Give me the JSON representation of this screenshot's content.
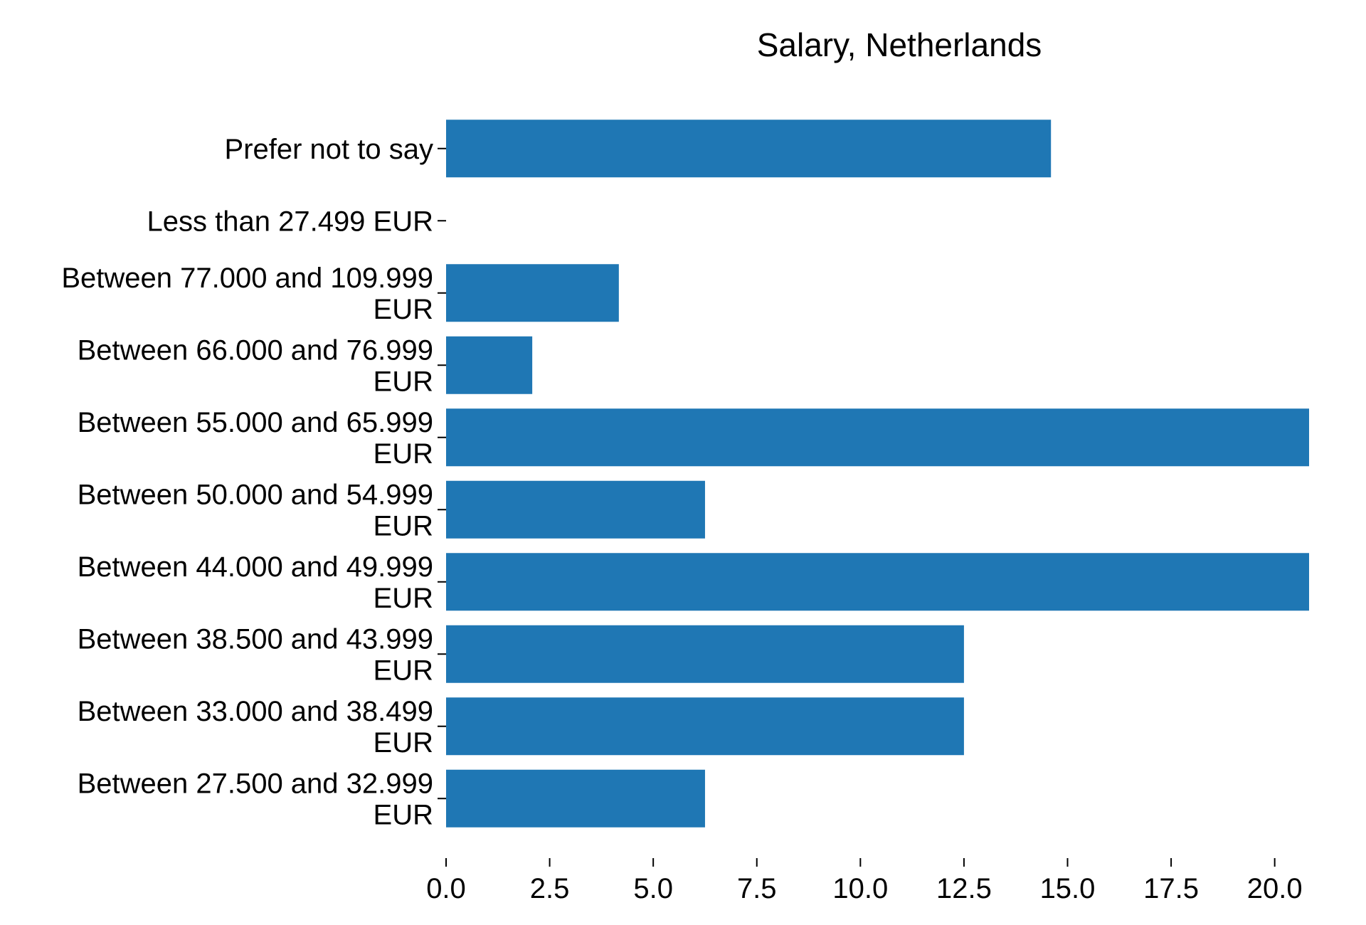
{
  "chart_data": {
    "type": "bar",
    "orientation": "horizontal",
    "title": "Salary, Netherlands",
    "xlabel": "",
    "ylabel": "",
    "categories": [
      "Prefer not to say",
      "Less than 27.499 EUR",
      "Between 77.000 and 109.999 EUR",
      "Between 66.000 and 76.999 EUR",
      "Between 55.000 and 65.999 EUR",
      "Between 50.000 and 54.999 EUR",
      "Between 44.000 and 49.999 EUR",
      "Between 38.500 and 43.999 EUR",
      "Between 33.000 and 38.499 EUR",
      "Between 27.500 and 32.999 EUR"
    ],
    "category_lines": [
      [
        "Prefer not to say"
      ],
      [
        "Less than 27.499 EUR"
      ],
      [
        "Between 77.000 and 109.999",
        "EUR"
      ],
      [
        "Between 66.000 and 76.999",
        "EUR"
      ],
      [
        "Between 55.000 and 65.999",
        "EUR"
      ],
      [
        "Between 50.000 and 54.999",
        "EUR"
      ],
      [
        "Between 44.000 and 49.999",
        "EUR"
      ],
      [
        "Between 38.500 and 43.999",
        "EUR"
      ],
      [
        "Between 33.000 and 38.499",
        "EUR"
      ],
      [
        "Between 27.500 and 32.999",
        "EUR"
      ]
    ],
    "values": [
      14.6,
      0,
      4.17,
      2.08,
      20.83,
      6.25,
      20.83,
      12.5,
      12.5,
      6.25
    ],
    "xlim": [
      0,
      20.83
    ],
    "xticks": [
      0.0,
      2.5,
      5.0,
      7.5,
      10.0,
      12.5,
      15.0,
      17.5,
      20.0
    ],
    "xtick_labels": [
      "0.0",
      "2.5",
      "5.0",
      "7.5",
      "10.0",
      "12.5",
      "15.0",
      "17.5",
      "20.0"
    ],
    "bar_color": "#1f77b4",
    "grid": false,
    "spines": false
  }
}
